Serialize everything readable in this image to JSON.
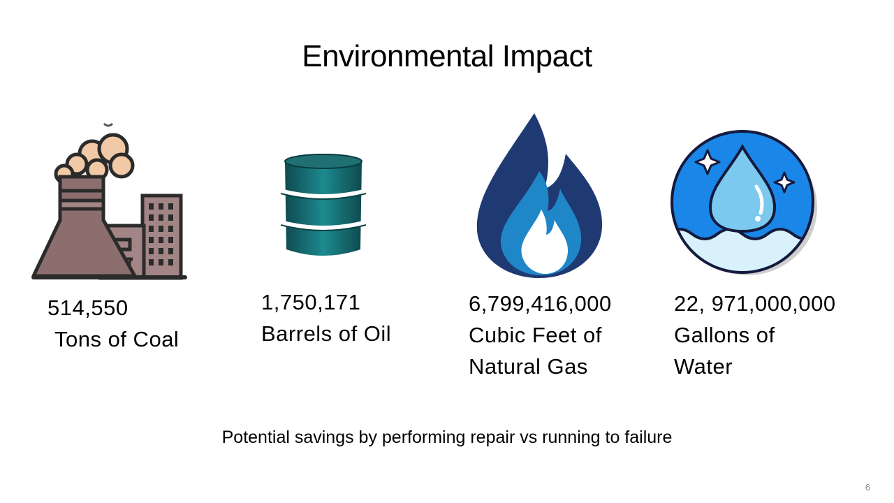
{
  "slide": {
    "title": "Environmental Impact",
    "footer": "Potential savings by performing repair vs running to failure",
    "page_number": "6"
  },
  "stats": [
    {
      "icon": "coal-power-plant-icon",
      "value": "514,550",
      "label": "Tons of Coal"
    },
    {
      "icon": "oil-barrel-icon",
      "value": "1,750,171",
      "label": "Barrels of Oil"
    },
    {
      "icon": "gas-flame-icon",
      "value": "6,799,416,000",
      "label_line1": "Cubic Feet of",
      "label_line2": "Natural Gas"
    },
    {
      "icon": "water-drop-icon",
      "value": "22, 971,000,000",
      "label_line1": "Gallons of",
      "label_line2": "Water"
    }
  ]
}
